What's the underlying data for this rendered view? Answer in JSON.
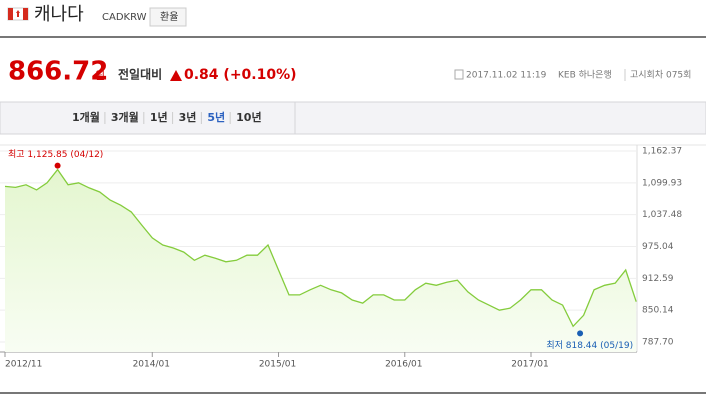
{
  "header": {
    "title": "캐나다",
    "code": "CADKRW",
    "button": "환율"
  },
  "price": {
    "value": "866.72",
    "unit": "원",
    "change_label": "전일대비",
    "change": "0.84 (+0.10%)"
  },
  "info": {
    "datetime": "2017.11.02 11:19",
    "bank": "KEB 하나은행",
    "round": "고시회차 075회"
  },
  "tabs": [
    "1개월",
    "3개월",
    "1년",
    "3년",
    "5년",
    "10년"
  ],
  "selected_tab": 4,
  "chart_data": {
    "type": "line",
    "color": "#84cc3c",
    "x": [
      "2012/11",
      "2012/12",
      "2013/01",
      "2013/02",
      "2013/03",
      "2013/04",
      "2013/05",
      "2013/06",
      "2013/07",
      "2013/08",
      "2013/09",
      "2013/10",
      "2013/11",
      "2013/12",
      "2014/01",
      "2014/02",
      "2014/03",
      "2014/04",
      "2014/05",
      "2014/06",
      "2014/07",
      "2014/08",
      "2014/09",
      "2014/10",
      "2014/11",
      "2014/12",
      "2015/01",
      "2015/02",
      "2015/03",
      "2015/04",
      "2015/05",
      "2015/06",
      "2015/07",
      "2015/08",
      "2015/09",
      "2015/10",
      "2015/11",
      "2015/12",
      "2016/01",
      "2016/02",
      "2016/03",
      "2016/04",
      "2016/05",
      "2016/06",
      "2016/07",
      "2016/08",
      "2016/09",
      "2016/10",
      "2016/11",
      "2016/12",
      "2017/01",
      "2017/02",
      "2017/03",
      "2017/04",
      "2017/05",
      "2017/06",
      "2017/07",
      "2017/08",
      "2017/09",
      "2017/10",
      "2017/11"
    ],
    "values": [
      1093,
      1091,
      1096,
      1086,
      1100,
      1125.85,
      1096,
      1100,
      1090,
      1082,
      1066,
      1056,
      1043,
      1017,
      992,
      978,
      972,
      964,
      948,
      958,
      952,
      945,
      948,
      958,
      958,
      978,
      929,
      880,
      880,
      890,
      899,
      890,
      884,
      870,
      864,
      880,
      880,
      870,
      870,
      890,
      903,
      899,
      905,
      909,
      886,
      870,
      860,
      850,
      854,
      870,
      890,
      890,
      870,
      860,
      818.44,
      840,
      890,
      899,
      903,
      929,
      866.72
    ],
    "ylim": [
      787.7,
      1162.37
    ],
    "yticks": [
      {
        "value": 1162.37,
        "label": "1,162.37"
      },
      {
        "value": 1099.93,
        "label": "1,099.93"
      },
      {
        "value": 1037.48,
        "label": "1,037.48"
      },
      {
        "value": 975.04,
        "label": "975.04"
      },
      {
        "value": 912.59,
        "label": "912.59"
      },
      {
        "value": 850.14,
        "label": "850.14"
      },
      {
        "value": 787.7,
        "label": "787.70"
      }
    ],
    "xticks": [
      "2012/11",
      "2014/01",
      "2015/01",
      "2016/01",
      "2017/01"
    ],
    "high": {
      "text": "최고 1,125.85 (04/12)",
      "color": "#d40000"
    },
    "low": {
      "text": "최저 818.44 (05/19)",
      "color": "#1a5fb4"
    }
  }
}
